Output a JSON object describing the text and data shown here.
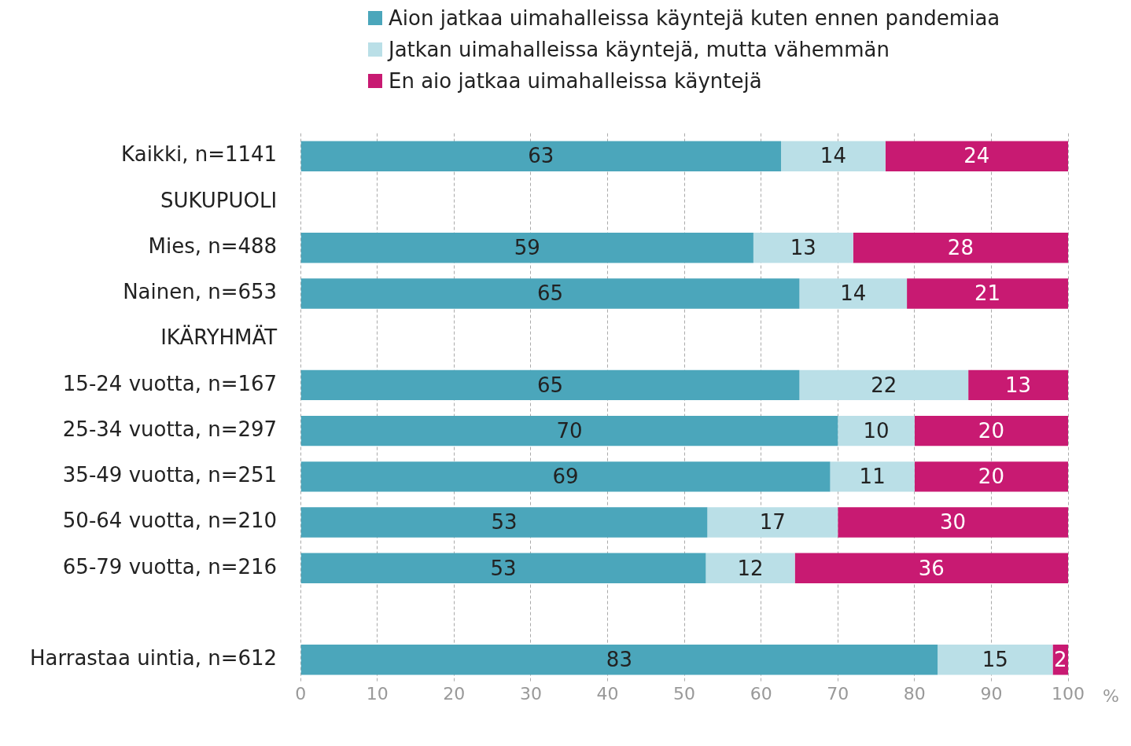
{
  "chart_data": {
    "type": "bar",
    "orientation": "horizontal",
    "stacked": true,
    "grid": "x",
    "legend": "top",
    "xlabel": "%",
    "categories": [
      "Kaikki, n=1141",
      "SUKUPUOLI",
      "Mies, n=488",
      "Nainen, n=653",
      "IKÄRYHMÄT",
      "15-24 vuotta, n=167",
      "25-34 vuotta, n=297",
      "35-49 vuotta, n=251",
      "50-64 vuotta, n=210",
      "65-79 vuotta, n=216",
      null,
      "Harrastaa uintia, n=612"
    ],
    "series": [
      {
        "name": "Aion jatkaa uimahalleissa käyntejä kuten ennen pandemiaa",
        "color": "#4ba6bb",
        "values": [
          62.6,
          null,
          59,
          65,
          null,
          65,
          70,
          69,
          53,
          52.8,
          null,
          83
        ],
        "value_labels": [
          "63",
          null,
          "59",
          "65",
          null,
          "65",
          "70",
          "69",
          "53",
          "53",
          null,
          "83"
        ]
      },
      {
        "name": "Jatkan uimahalleissa käyntejä, mutta vähemmän",
        "color": "#badfe7",
        "values": [
          13.6,
          null,
          13,
          14,
          null,
          22,
          10,
          11,
          17,
          11.6,
          null,
          15
        ],
        "value_labels": [
          "14",
          null,
          "13",
          "14",
          null,
          "22",
          "10",
          "11",
          "17",
          "12",
          null,
          "15"
        ]
      },
      {
        "name": "En aio jatkaa uimahalleissa käyntejä",
        "color": "#c81a72",
        "values": [
          23.8,
          null,
          28,
          21,
          null,
          13,
          20,
          20,
          30,
          35.6,
          null,
          2
        ],
        "value_labels": [
          "24",
          null,
          "28",
          "21",
          null,
          "13",
          "20",
          "20",
          "30",
          "36",
          null,
          "2"
        ]
      }
    ],
    "xlim": [
      0,
      100
    ],
    "xticks": [
      0,
      10,
      20,
      30,
      40,
      50,
      60,
      70,
      80,
      90,
      100
    ]
  }
}
